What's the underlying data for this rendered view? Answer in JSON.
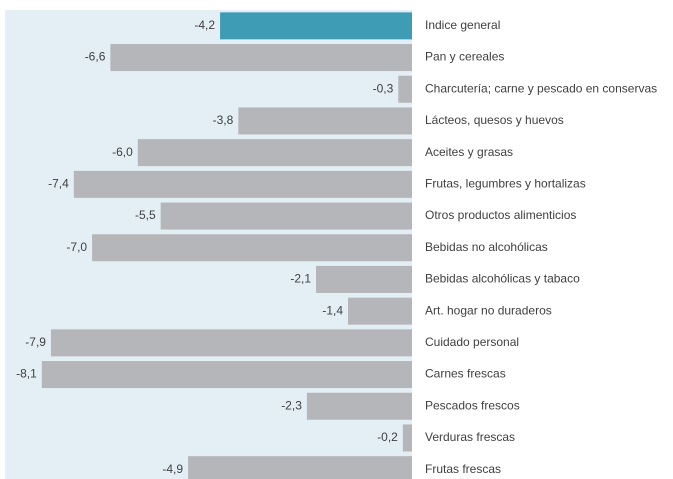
{
  "chart_data": {
    "type": "bar",
    "orientation": "horizontal",
    "categories": [
      "Indice general",
      "Pan y cereales",
      "Charcutería; carne y pescado en conservas",
      "Lácteos, quesos y huevos",
      "Aceites y grasas",
      "Frutas, legumbres y hortalizas",
      "Otros productos alimenticios",
      "Bebidas no alcohólicas",
      "Bebidas alcohólicas y tabaco",
      "Art. hogar no duraderos",
      "Cuidado personal",
      "Carnes frescas",
      "Pescados frescos",
      "Verduras frescas",
      "Frutas frescas"
    ],
    "values": [
      -4.2,
      -6.6,
      -0.3,
      -3.8,
      -6.0,
      -7.4,
      -5.5,
      -7.0,
      -2.1,
      -1.4,
      -7.9,
      -8.1,
      -2.3,
      -0.2,
      -4.9
    ],
    "value_labels": [
      "-4,2",
      "-6,6",
      "-0,3",
      "-3,8",
      "-6,0",
      "-7,4",
      "-5,5",
      "-7,0",
      "-2,1",
      "-1,4",
      "-7,9",
      "-8,1",
      "-2,3",
      "-0,2",
      "-4,9"
    ],
    "colors": [
      "#3f9cb5",
      "#b4b6b9",
      "#b4b6b9",
      "#b4b6b9",
      "#b4b6b9",
      "#b4b6b9",
      "#b4b6b9",
      "#b4b6b9",
      "#b4b6b9",
      "#b4b6b9",
      "#b4b6b9",
      "#b4b6b9",
      "#b4b6b9",
      "#b4b6b9",
      "#b4b6b9"
    ]
  }
}
